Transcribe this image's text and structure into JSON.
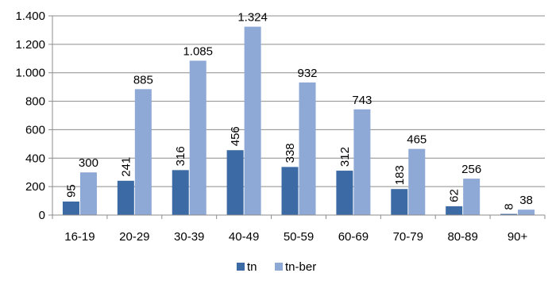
{
  "chart_data": {
    "type": "bar",
    "categories": [
      "16-19",
      "20-29",
      "30-39",
      "40-49",
      "50-59",
      "60-69",
      "70-79",
      "80-89",
      "90+"
    ],
    "series": [
      {
        "name": "tn",
        "values": [
          95,
          241,
          316,
          456,
          338,
          312,
          183,
          62,
          8
        ],
        "labels": [
          "95",
          "241",
          "316",
          "456",
          "338",
          "312",
          "183",
          "62",
          "8"
        ],
        "label_orientation": "vertical",
        "color": "#3b6aa5"
      },
      {
        "name": "tn-ber",
        "values": [
          300,
          885,
          1085,
          1324,
          932,
          743,
          465,
          256,
          38
        ],
        "labels": [
          "300",
          "885",
          "1.085",
          "1.324",
          "932",
          "743",
          "465",
          "256",
          "38"
        ],
        "label_orientation": "horizontal",
        "color": "#8ea9d6"
      }
    ],
    "yticks": [
      0,
      200,
      400,
      600,
      800,
      1000,
      1200,
      1400
    ],
    "ytick_labels": [
      "0",
      "200",
      "400",
      "600",
      "800",
      "1.000",
      "1.200",
      "1.400"
    ],
    "ylim": [
      0,
      1400
    ],
    "grid": true,
    "legend_position": "bottom",
    "title": "",
    "xlabel": "",
    "ylabel": ""
  }
}
